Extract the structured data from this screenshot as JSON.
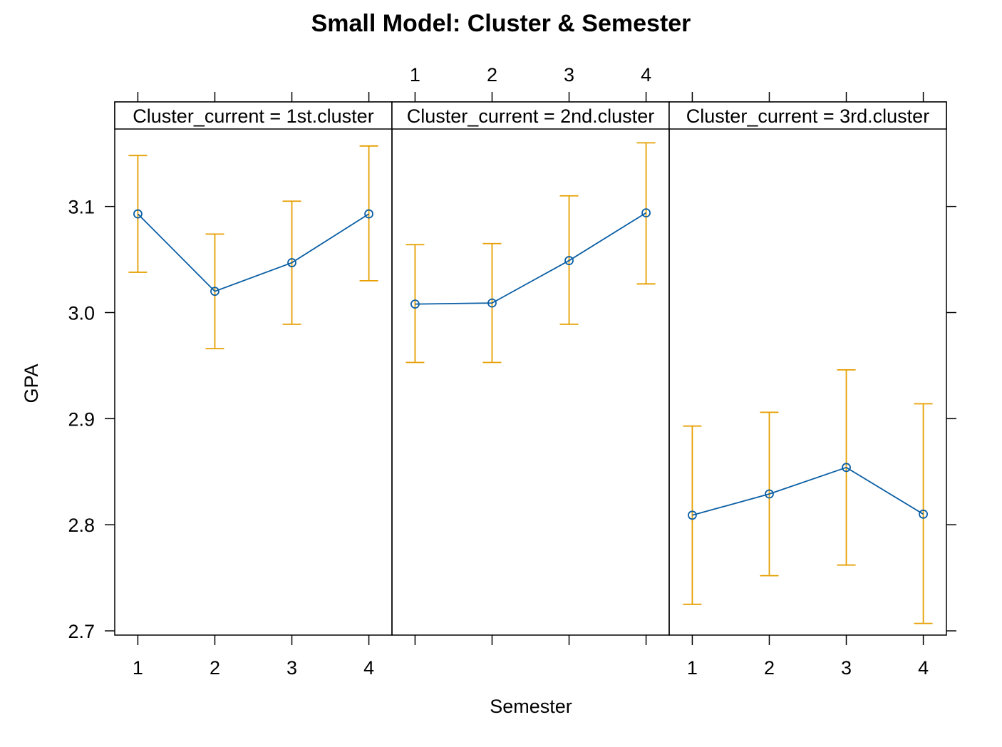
{
  "chart_data": {
    "type": "line",
    "title": "Small Model: Cluster & Semester",
    "xlabel": "Semester",
    "ylabel": "GPA",
    "x": [
      1,
      2,
      3,
      4
    ],
    "x_ticks": [
      "1",
      "2",
      "3",
      "4"
    ],
    "y_ticks": [
      "2.7",
      "2.8",
      "2.9",
      "3.0",
      "3.1"
    ],
    "ylim": [
      2.696,
      3.173
    ],
    "grid": false,
    "colors": {
      "line": "#0b5fa5",
      "error_bar": "#e69f00"
    },
    "panels": [
      {
        "strip": "Cluster_current = 1st.cluster",
        "y": [
          3.093,
          3.02,
          3.047,
          3.093
        ],
        "lower": [
          3.038,
          2.966,
          2.989,
          3.03
        ],
        "upper": [
          3.148,
          3.074,
          3.105,
          3.157
        ]
      },
      {
        "strip": "Cluster_current = 2nd.cluster",
        "y": [
          3.008,
          3.009,
          3.049,
          3.094
        ],
        "lower": [
          2.953,
          2.953,
          2.989,
          3.027
        ],
        "upper": [
          3.064,
          3.065,
          3.11,
          3.16
        ]
      },
      {
        "strip": "Cluster_current = 3rd.cluster",
        "y": [
          2.809,
          2.829,
          2.854,
          2.81
        ],
        "lower": [
          2.725,
          2.752,
          2.762,
          2.707
        ],
        "upper": [
          2.893,
          2.906,
          2.946,
          2.914
        ]
      }
    ]
  }
}
